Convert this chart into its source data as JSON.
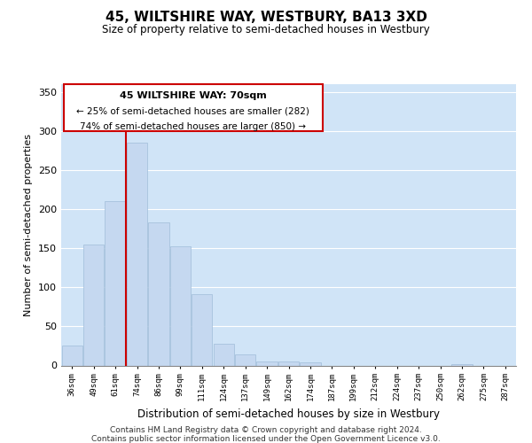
{
  "title": "45, WILTSHIRE WAY, WESTBURY, BA13 3XD",
  "subtitle": "Size of property relative to semi-detached houses in Westbury",
  "xlabel": "Distribution of semi-detached houses by size in Westbury",
  "ylabel": "Number of semi-detached properties",
  "bin_labels": [
    "36sqm",
    "49sqm",
    "61sqm",
    "74sqm",
    "86sqm",
    "99sqm",
    "111sqm",
    "124sqm",
    "137sqm",
    "149sqm",
    "162sqm",
    "174sqm",
    "187sqm",
    "199sqm",
    "212sqm",
    "224sqm",
    "237sqm",
    "250sqm",
    "262sqm",
    "275sqm",
    "287sqm"
  ],
  "bar_heights": [
    25,
    155,
    210,
    285,
    183,
    152,
    91,
    28,
    14,
    5,
    5,
    4,
    0,
    0,
    0,
    0,
    0,
    0,
    2,
    0,
    0
  ],
  "bar_color": "#c5d8f0",
  "bar_edge_color": "#a0bcd8",
  "property_line_color": "#cc0000",
  "annotation_box_color": "#ffffff",
  "annotation_box_edge_color": "#cc0000",
  "ylim": [
    0,
    360
  ],
  "footer_line1": "Contains HM Land Registry data © Crown copyright and database right 2024.",
  "footer_line2": "Contains public sector information licensed under the Open Government Licence v3.0.",
  "background_color": "#ffffff",
  "grid_color": "#d0e4f7"
}
